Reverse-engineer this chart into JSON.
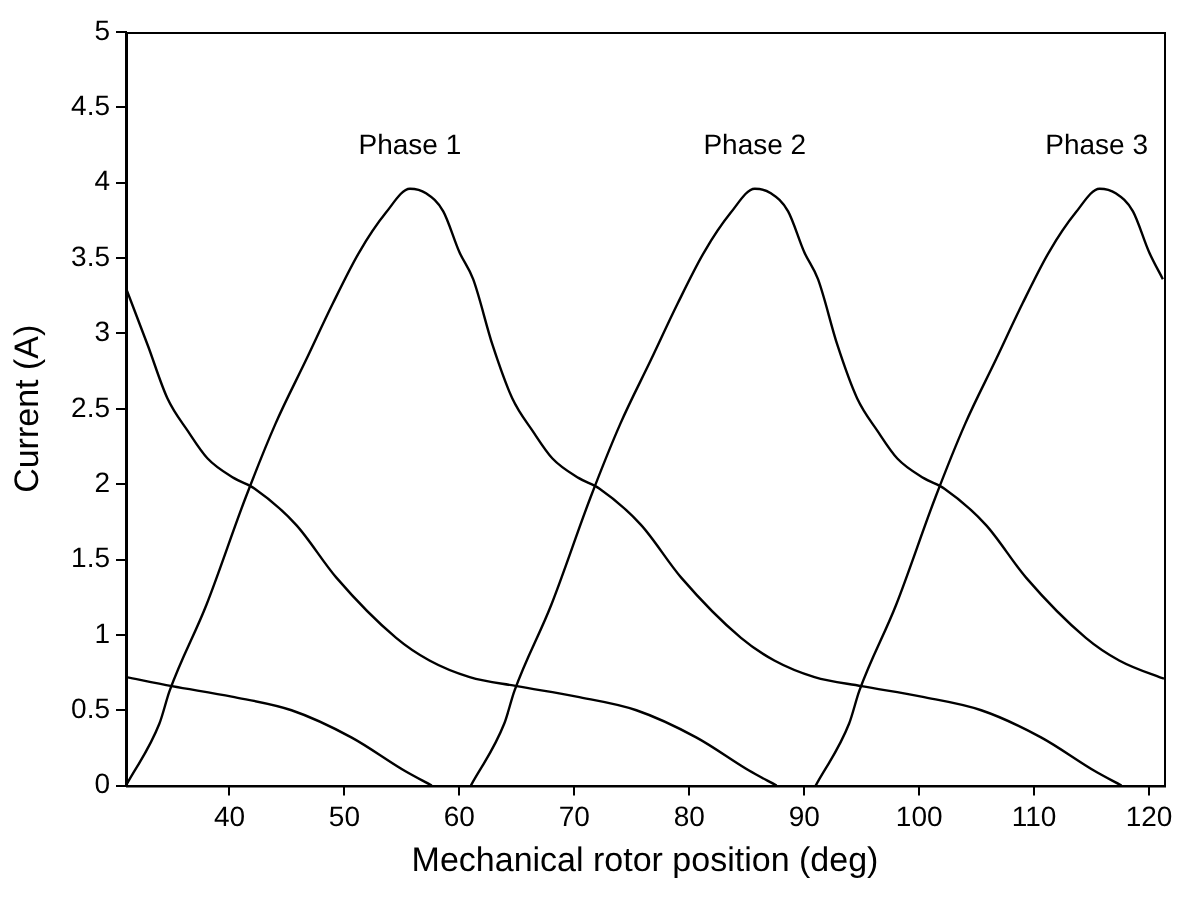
{
  "chart_data": {
    "type": "line",
    "xlabel": "Mechanical rotor position (deg)",
    "ylabel": "Current (A)",
    "xlim": [
      31,
      121.3
    ],
    "xticks": [
      40,
      50,
      60,
      70,
      80,
      90,
      100,
      110,
      120
    ],
    "ylim": [
      0,
      5
    ],
    "yticks": [
      0,
      0.5,
      1,
      1.5,
      2,
      2.5,
      3,
      3.5,
      4,
      4.5,
      5
    ],
    "grid": false,
    "legend": false,
    "marker": "none",
    "line_style": "solid",
    "series": [
      {
        "name": "Phase 1",
        "color": "#000000",
        "x": [
          31,
          33.9,
          34.8,
          38,
          41.4,
          44,
          46.7,
          49,
          51.3,
          53.6,
          55.7,
          57.1,
          58.6,
          60,
          61.2,
          62.9,
          64.6,
          66.4,
          68.1,
          70.4,
          72.2,
          75.8,
          79.3,
          84.5,
          87.4,
          90.9,
          95,
          100.2,
          105.4,
          110.6,
          115.2,
          117.6
        ],
        "values": [
          0,
          0.41,
          0.63,
          1.2,
          1.91,
          2.4,
          2.83,
          3.2,
          3.54,
          3.8,
          3.96,
          3.93,
          3.81,
          3.54,
          3.36,
          2.92,
          2.57,
          2.35,
          2.17,
          2.04,
          1.97,
          1.73,
          1.38,
          0.98,
          0.83,
          0.72,
          0.66,
          0.59,
          0.5,
          0.32,
          0.1,
          0
        ]
      },
      {
        "name": "Phase 2",
        "color": "#000000",
        "x": [
          31,
          35,
          40.2,
          45.4,
          50.6,
          55.2,
          57.6,
          59,
          61,
          63.9,
          64.8,
          68,
          71.4,
          74,
          76.7,
          79,
          81.3,
          83.6,
          85.7,
          87.1,
          88.6,
          90,
          91.2,
          92.9,
          94.6,
          96.4,
          98.1,
          100.4,
          102.2,
          105.8,
          109.3,
          114.5,
          117.4,
          120.9,
          121.3
        ],
        "values": [
          0.72,
          0.66,
          0.59,
          0.5,
          0.32,
          0.1,
          0,
          null,
          0,
          0.41,
          0.63,
          1.2,
          1.91,
          2.4,
          2.83,
          3.2,
          3.54,
          3.8,
          3.96,
          3.93,
          3.81,
          3.54,
          3.36,
          2.92,
          2.57,
          2.35,
          2.17,
          2.04,
          1.97,
          1.73,
          1.38,
          0.98,
          0.83,
          0.72,
          0.71
        ]
      },
      {
        "name": "Phase 3",
        "color": "#000000",
        "x": [
          31,
          32.9,
          34.6,
          36.4,
          38.1,
          40.4,
          42.2,
          45.8,
          49.3,
          54.5,
          57.4,
          60.9,
          65,
          70.2,
          75.4,
          80.6,
          85.2,
          87.6,
          89,
          91,
          93.9,
          94.8,
          98,
          101.4,
          104,
          106.7,
          109,
          111.3,
          113.6,
          115.7,
          117.1,
          118.6,
          120,
          121.2
        ],
        "values": [
          3.3,
          2.92,
          2.57,
          2.35,
          2.17,
          2.04,
          1.97,
          1.73,
          1.38,
          0.98,
          0.83,
          0.72,
          0.66,
          0.59,
          0.5,
          0.32,
          0.1,
          0,
          null,
          0,
          0.41,
          0.63,
          1.2,
          1.91,
          2.4,
          2.83,
          3.2,
          3.54,
          3.8,
          3.96,
          3.93,
          3.81,
          3.54,
          3.36
        ]
      }
    ]
  }
}
